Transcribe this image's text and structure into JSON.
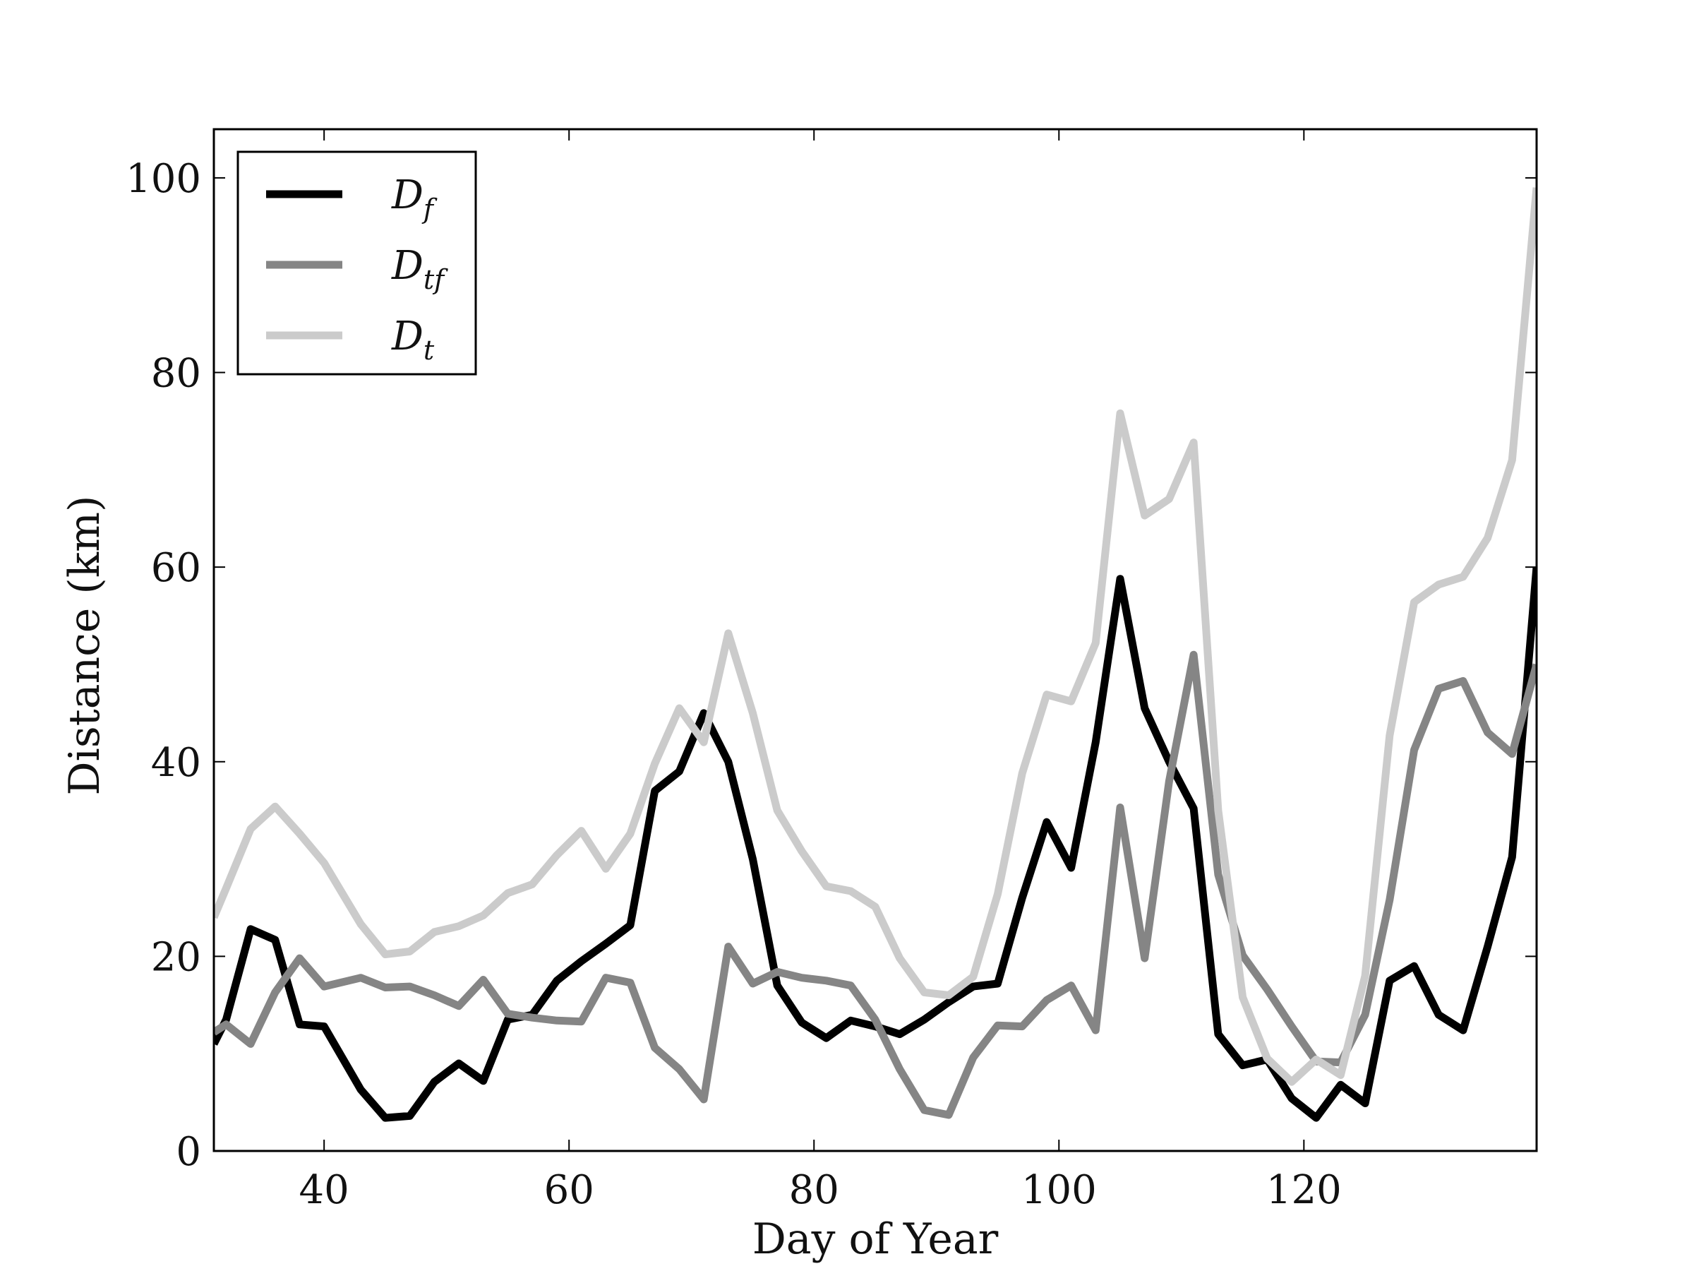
{
  "chart_data": {
    "type": "line",
    "xlabel": "Day of Year",
    "ylabel": "Distance (km)",
    "xlim": [
      31,
      139
    ],
    "ylim": [
      0,
      105
    ],
    "xticks": [
      40,
      60,
      80,
      100,
      120
    ],
    "yticks": [
      0,
      20,
      40,
      60,
      80,
      100
    ],
    "grid": false,
    "legend_position": "top-left",
    "series": [
      {
        "name": "D_f",
        "legend_main": "D",
        "legend_sub": "f",
        "color": "#000000",
        "x": [
          31,
          32,
          34,
          36,
          38,
          40,
          43,
          45,
          47,
          49,
          51,
          53,
          55,
          57,
          59,
          61,
          63,
          65,
          67,
          69,
          71,
          73,
          75,
          77,
          79,
          81,
          83,
          85,
          87,
          89,
          91,
          93,
          95,
          97,
          99,
          101,
          103,
          105,
          107,
          109,
          111,
          113,
          115,
          117,
          119,
          121,
          123,
          125,
          127,
          129,
          131,
          133,
          135,
          137,
          139
        ],
        "values": [
          11,
          13.5,
          22.8,
          21.7,
          13,
          12.8,
          6.3,
          3.4,
          3.6,
          7.1,
          9,
          7.2,
          13.5,
          14,
          17.5,
          19.5,
          21.3,
          23.2,
          37,
          39,
          45,
          40,
          30,
          17,
          13.2,
          11.6,
          13.4,
          12.8,
          12,
          13.5,
          15.3,
          16.9,
          17.2,
          26,
          33.8,
          29.1,
          42,
          58.8,
          45.5,
          40,
          35.2,
          12,
          8.8,
          9.4,
          5.4,
          3.4,
          6.8,
          4.9,
          17.5,
          19,
          14,
          12.4,
          21,
          30.2,
          60
        ]
      },
      {
        "name": "D_tf",
        "legend_main": "D",
        "legend_sub": "tf",
        "color": "#858585",
        "x": [
          31,
          32,
          34,
          36,
          38,
          40,
          43,
          45,
          47,
          49,
          51,
          53,
          55,
          57,
          59,
          61,
          63,
          65,
          67,
          69,
          71,
          73,
          75,
          77,
          79,
          81,
          83,
          85,
          87,
          89,
          91,
          93,
          95,
          97,
          99,
          101,
          103,
          105,
          107,
          109,
          111,
          113,
          115,
          117,
          119,
          121,
          123,
          125,
          127,
          129,
          131,
          133,
          135,
          137,
          139
        ],
        "values": [
          12.2,
          13,
          11,
          16.3,
          19.8,
          16.9,
          17.8,
          16.8,
          16.9,
          16,
          14.9,
          17.6,
          14.1,
          13.7,
          13.4,
          13.3,
          17.8,
          17.3,
          10.6,
          8.4,
          5.3,
          21,
          17.2,
          18.4,
          17.8,
          17.5,
          17,
          13.5,
          8.4,
          4.2,
          3.7,
          9.6,
          12.9,
          12.8,
          15.5,
          17,
          12.4,
          35.3,
          19.8,
          38,
          51,
          28.4,
          20.1,
          16.6,
          12.8,
          9.2,
          9.1,
          14,
          25.8,
          41.2,
          47.5,
          48.3,
          43,
          40.8,
          50
        ]
      },
      {
        "name": "D_t",
        "legend_main": "D",
        "legend_sub": "t",
        "color": "#cbcbcb",
        "x": [
          31,
          32,
          34,
          36,
          38,
          40,
          43,
          45,
          47,
          49,
          51,
          53,
          55,
          57,
          59,
          61,
          63,
          65,
          67,
          69,
          71,
          73,
          75,
          77,
          79,
          81,
          83,
          85,
          87,
          89,
          91,
          93,
          95,
          97,
          99,
          101,
          103,
          105,
          107,
          109,
          111,
          113,
          115,
          117,
          119,
          121,
          123,
          125,
          127,
          129,
          131,
          133,
          135,
          137,
          139
        ],
        "values": [
          24,
          27,
          33.1,
          35.4,
          32.6,
          29.6,
          23.3,
          20.2,
          20.5,
          22.5,
          23.1,
          24.2,
          26.5,
          27.4,
          30.4,
          32.9,
          29,
          32.6,
          39.8,
          45.5,
          42,
          53.2,
          45,
          35,
          30.8,
          27.2,
          26.7,
          25.1,
          19.8,
          16.3,
          16,
          17.9,
          26.4,
          38.8,
          46.9,
          46.2,
          52.2,
          75.8,
          65.3,
          67,
          72.8,
          35,
          15.8,
          9.5,
          7.1,
          9.4,
          7.8,
          18,
          42.7,
          56.4,
          58.2,
          59,
          63,
          71,
          99
        ]
      }
    ]
  }
}
